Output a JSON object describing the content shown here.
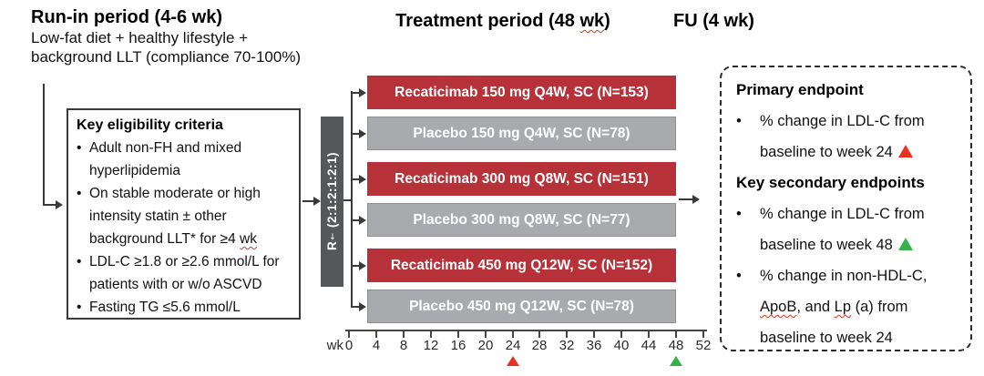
{
  "colors": {
    "arm_active": "#b63238",
    "arm_placebo": "#a9aaad",
    "randomization_bar": "#56575a",
    "marker_red": "#e8321f",
    "marker_green": "#35b34a"
  },
  "runin": {
    "title": "Run-in period (4-6 wk)",
    "lines": [
      "Low-fat diet + healthy lifestyle +",
      "background LLT (compliance 70-100%)"
    ]
  },
  "treatment": {
    "title_segments": [
      {
        "t": "Treatment period (48 "
      },
      {
        "t": "wk",
        "wavy": true
      },
      {
        "t": ")"
      }
    ]
  },
  "fu": {
    "title": "FU (4 wk)"
  },
  "eligibility": {
    "title": "Key eligibility criteria",
    "items": [
      {
        "lines": [
          [
            {
              "t": "Adult non-FH and mixed"
            }
          ],
          [
            {
              "t": "hyperlipidemia"
            }
          ]
        ]
      },
      {
        "lines": [
          [
            {
              "t": "On stable moderate or high"
            }
          ],
          [
            {
              "t": "intensity statin ± other"
            }
          ],
          [
            {
              "t": "background LLT* for ≥4 "
            },
            {
              "t": "wk",
              "wavy": true
            }
          ]
        ]
      },
      {
        "lines": [
          [
            {
              "t": "LDL-C ≥1.8 or ≥2.6 mmol/L for"
            }
          ],
          [
            {
              "t": "patients with or w/o ASCVD"
            }
          ]
        ]
      },
      {
        "lines": [
          [
            {
              "t": "Fasting TG ≤5.6 mmol/L"
            }
          ]
        ]
      }
    ]
  },
  "randomization": {
    "label_segments": [
      {
        "t": "R"
      },
      {
        "t": "†",
        "sup": true
      },
      {
        "t": " (2:1:2:1:2:1)"
      }
    ]
  },
  "arms": [
    {
      "label": "Recaticimab 150 mg Q4W, SC (N=153)",
      "type": "active"
    },
    {
      "label": "Placebo 150 mg Q4W, SC (N=78)",
      "type": "placebo"
    },
    {
      "label": "Recaticimab 300 mg Q8W, SC (N=151)",
      "type": "active"
    },
    {
      "label": "Placebo 300 mg Q8W, SC (N=77)",
      "type": "placebo"
    },
    {
      "label": "Recaticimab 450 mg Q12W, SC (N=152)",
      "type": "active"
    },
    {
      "label": "Placebo 450 mg Q12W, SC (N=78)",
      "type": "placebo"
    }
  ],
  "timeline": {
    "prefix": "wk",
    "ticks": [
      0,
      4,
      8,
      12,
      16,
      20,
      24,
      28,
      32,
      36,
      40,
      44,
      48,
      52
    ],
    "markers": [
      {
        "week": 24,
        "color": "#e8321f",
        "name": "red-triangle-icon"
      },
      {
        "week": 48,
        "color": "#35b34a",
        "name": "green-triangle-icon"
      }
    ]
  },
  "endpoints": {
    "blocks": [
      {
        "type": "heading",
        "text": "Primary endpoint"
      },
      {
        "type": "bullet",
        "lines": [
          [
            {
              "t": "% change in LDL-C from"
            }
          ],
          [
            {
              "t": "baseline to week 24 "
            },
            {
              "marker": "#e8321f",
              "name": "red-triangle-icon"
            }
          ]
        ]
      },
      {
        "type": "heading",
        "text": "Key secondary endpoints"
      },
      {
        "type": "bullet",
        "lines": [
          [
            {
              "t": "% change in LDL-C from"
            }
          ],
          [
            {
              "t": "baseline to week 48 "
            },
            {
              "marker": "#35b34a",
              "name": "green-triangle-icon"
            }
          ]
        ]
      },
      {
        "type": "bullet",
        "lines": [
          [
            {
              "t": "% change in non-HDL-C,"
            }
          ],
          [
            {
              "t": "ApoB",
              "wavy": true
            },
            {
              "t": ", and "
            },
            {
              "t": "Lp",
              "wavy": true
            },
            {
              "t": " (a) from"
            }
          ],
          [
            {
              "t": "baseline to week 24"
            }
          ]
        ]
      }
    ]
  }
}
